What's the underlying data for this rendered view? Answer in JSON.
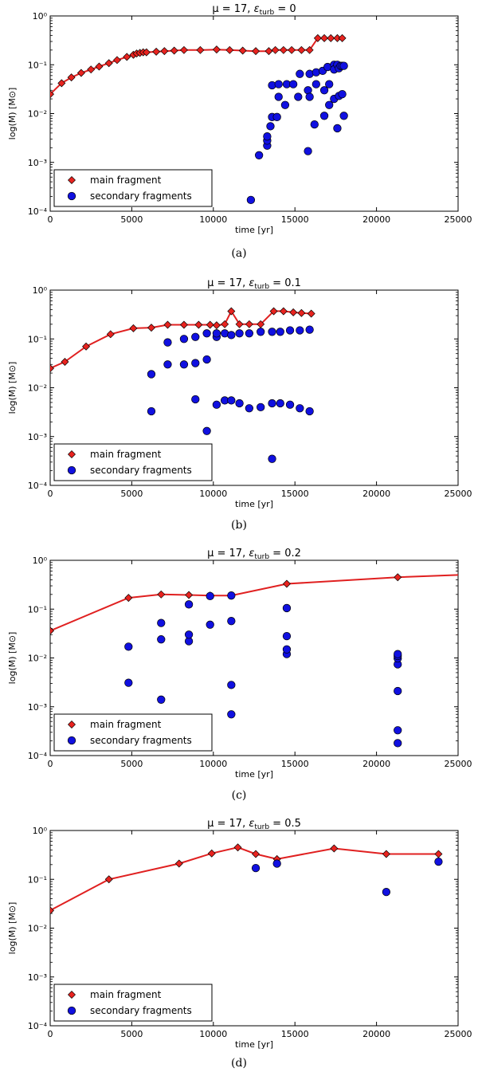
{
  "chart_data": [
    {
      "type": "scatter",
      "panel": "a",
      "title": "μ = 17, ε_turb = 0",
      "title_parts": {
        "prefix": "μ = 17, ",
        "epsilon": "ε",
        "sub": "turb",
        "suffix": " = 0"
      },
      "caption": "(a)",
      "xlabel": "time [yr]",
      "ylabel": "log(M) [M⊙]",
      "xlim": [
        0,
        25000
      ],
      "ylim_log10": [
        -4,
        0
      ],
      "xticks": [
        0,
        5000,
        10000,
        15000,
        20000,
        25000
      ],
      "ytick_labels": [
        "10⁰",
        "10⁻¹",
        "10⁻²",
        "10⁻³",
        "10⁻⁴"
      ],
      "legend": {
        "position": "lower-left",
        "entries": [
          "main fragment",
          "secondary fragments"
        ]
      },
      "series": [
        {
          "name": "main fragment",
          "marker": "diamond",
          "color": "#e8231f",
          "line": true,
          "points": [
            [
              0,
              0.025
            ],
            [
              700,
              0.042
            ],
            [
              1300,
              0.055
            ],
            [
              1900,
              0.068
            ],
            [
              2500,
              0.08
            ],
            [
              3000,
              0.092
            ],
            [
              3600,
              0.108
            ],
            [
              4100,
              0.125
            ],
            [
              4700,
              0.145
            ],
            [
              5100,
              0.16
            ],
            [
              5300,
              0.17
            ],
            [
              5500,
              0.175
            ],
            [
              5700,
              0.18
            ],
            [
              5900,
              0.18
            ],
            [
              6500,
              0.185
            ],
            [
              7000,
              0.19
            ],
            [
              7600,
              0.195
            ],
            [
              8200,
              0.2
            ],
            [
              9200,
              0.2
            ],
            [
              10200,
              0.205
            ],
            [
              11000,
              0.2
            ],
            [
              11800,
              0.195
            ],
            [
              12600,
              0.19
            ],
            [
              13400,
              0.19
            ],
            [
              13800,
              0.2
            ],
            [
              14300,
              0.2
            ],
            [
              14800,
              0.2
            ],
            [
              15400,
              0.2
            ],
            [
              15900,
              0.2
            ],
            [
              16400,
              0.35
            ],
            [
              16800,
              0.35
            ],
            [
              17200,
              0.35
            ],
            [
              17600,
              0.35
            ],
            [
              17900,
              0.35
            ]
          ]
        },
        {
          "name": "secondary fragments",
          "marker": "circle",
          "color": "#1010e0",
          "line": false,
          "points": [
            [
              12300,
              0.00017
            ],
            [
              12800,
              0.0014
            ],
            [
              13300,
              0.0022
            ],
            [
              13300,
              0.0028
            ],
            [
              13300,
              0.0034
            ],
            [
              13500,
              0.0055
            ],
            [
              13600,
              0.0085
            ],
            [
              13600,
              0.038
            ],
            [
              13900,
              0.0085
            ],
            [
              14000,
              0.022
            ],
            [
              14000,
              0.04
            ],
            [
              14400,
              0.015
            ],
            [
              14500,
              0.04
            ],
            [
              14900,
              0.04
            ],
            [
              15200,
              0.022
            ],
            [
              15300,
              0.065
            ],
            [
              15800,
              0.0017
            ],
            [
              15800,
              0.03
            ],
            [
              15900,
              0.065
            ],
            [
              15900,
              0.022
            ],
            [
              16200,
              0.006
            ],
            [
              16300,
              0.07
            ],
            [
              16300,
              0.04
            ],
            [
              16700,
              0.075
            ],
            [
              16800,
              0.009
            ],
            [
              16800,
              0.03
            ],
            [
              17000,
              0.09
            ],
            [
              17100,
              0.015
            ],
            [
              17100,
              0.04
            ],
            [
              17400,
              0.1
            ],
            [
              17400,
              0.08
            ],
            [
              17400,
              0.02
            ],
            [
              17600,
              0.1
            ],
            [
              17600,
              0.005
            ],
            [
              17700,
              0.085
            ],
            [
              17700,
              0.023
            ],
            [
              17800,
              0.095
            ],
            [
              17900,
              0.095
            ],
            [
              17900,
              0.025
            ],
            [
              18000,
              0.009
            ],
            [
              18000,
              0.095
            ]
          ]
        }
      ]
    },
    {
      "type": "scatter",
      "panel": "b",
      "title": "μ = 17, ε_turb = 0.1",
      "title_parts": {
        "prefix": "μ = 17, ",
        "epsilon": "ε",
        "sub": "turb",
        "suffix": " = 0.1"
      },
      "caption": "(b)",
      "xlabel": "time [yr]",
      "ylabel": "log(M) [M⊙]",
      "xlim": [
        0,
        25000
      ],
      "ylim_log10": [
        -4,
        0
      ],
      "xticks": [
        0,
        5000,
        10000,
        15000,
        20000,
        25000
      ],
      "ytick_labels": [
        "10⁰",
        "10⁻¹",
        "10⁻²",
        "10⁻³",
        "10⁻⁴"
      ],
      "legend": {
        "position": "lower-left",
        "entries": [
          "main fragment",
          "secondary fragments"
        ]
      },
      "series": [
        {
          "name": "main fragment",
          "marker": "diamond",
          "color": "#e8231f",
          "line": true,
          "points": [
            [
              0,
              0.025
            ],
            [
              900,
              0.034
            ],
            [
              2200,
              0.07
            ],
            [
              3700,
              0.125
            ],
            [
              5100,
              0.165
            ],
            [
              6200,
              0.17
            ],
            [
              7200,
              0.195
            ],
            [
              8200,
              0.195
            ],
            [
              9100,
              0.195
            ],
            [
              9800,
              0.195
            ],
            [
              10200,
              0.19
            ],
            [
              10700,
              0.2
            ],
            [
              11100,
              0.37
            ],
            [
              11600,
              0.2
            ],
            [
              12200,
              0.2
            ],
            [
              12900,
              0.2
            ],
            [
              13700,
              0.37
            ],
            [
              14300,
              0.37
            ],
            [
              14900,
              0.35
            ],
            [
              15400,
              0.34
            ],
            [
              16000,
              0.33
            ]
          ]
        },
        {
          "name": "secondary fragments",
          "marker": "circle",
          "color": "#1010e0",
          "line": false,
          "points": [
            [
              6200,
              0.0033
            ],
            [
              6200,
              0.019
            ],
            [
              7200,
              0.03
            ],
            [
              7200,
              0.085
            ],
            [
              8200,
              0.03
            ],
            [
              8200,
              0.1
            ],
            [
              8900,
              0.0058
            ],
            [
              8900,
              0.032
            ],
            [
              8900,
              0.11
            ],
            [
              9600,
              0.0013
            ],
            [
              9600,
              0.038
            ],
            [
              9600,
              0.13
            ],
            [
              10200,
              0.0045
            ],
            [
              10200,
              0.11
            ],
            [
              10200,
              0.13
            ],
            [
              10700,
              0.0055
            ],
            [
              10700,
              0.13
            ],
            [
              11100,
              0.0055
            ],
            [
              11100,
              0.12
            ],
            [
              11600,
              0.0048
            ],
            [
              11600,
              0.13
            ],
            [
              12200,
              0.0038
            ],
            [
              12200,
              0.13
            ],
            [
              12900,
              0.004
            ],
            [
              12900,
              0.14
            ],
            [
              13600,
              0.00035
            ],
            [
              13600,
              0.0048
            ],
            [
              13600,
              0.14
            ],
            [
              14100,
              0.0048
            ],
            [
              14100,
              0.14
            ],
            [
              14700,
              0.0045
            ],
            [
              14700,
              0.15
            ],
            [
              15300,
              0.0038
            ],
            [
              15300,
              0.15
            ],
            [
              15900,
              0.0033
            ],
            [
              15900,
              0.155
            ]
          ]
        }
      ]
    },
    {
      "type": "scatter",
      "panel": "c",
      "title": "μ = 17, ε_turb = 0.2",
      "title_parts": {
        "prefix": "μ = 17, ",
        "epsilon": "ε",
        "sub": "turb",
        "suffix": " = 0.2"
      },
      "caption": "(c)",
      "xlabel": "time [yr]",
      "ylabel": "log(M) [M⊙]",
      "xlim": [
        0,
        25000
      ],
      "ylim_log10": [
        -4,
        0
      ],
      "xticks": [
        0,
        5000,
        10000,
        15000,
        20000,
        25000
      ],
      "ytick_labels": [
        "10⁰",
        "10⁻¹",
        "10⁻²",
        "10⁻³",
        "10⁻⁴"
      ],
      "legend": {
        "position": "lower-left",
        "entries": [
          "main fragment",
          "secondary fragments"
        ]
      },
      "series": [
        {
          "name": "main fragment",
          "marker": "diamond",
          "color": "#e8231f",
          "line": true,
          "points": [
            [
              0,
              0.036
            ],
            [
              4800,
              0.17
            ],
            [
              6800,
              0.2
            ],
            [
              8500,
              0.195
            ],
            [
              9800,
              0.19
            ],
            [
              11100,
              0.19
            ],
            [
              14500,
              0.33
            ],
            [
              21300,
              0.45
            ],
            [
              25000,
              0.5
            ]
          ],
          "hidden_marker_last": true
        },
        {
          "name": "secondary fragments",
          "marker": "circle",
          "color": "#1010e0",
          "line": false,
          "points": [
            [
              4800,
              0.0031
            ],
            [
              4800,
              0.017
            ],
            [
              6800,
              0.0014
            ],
            [
              6800,
              0.024
            ],
            [
              6800,
              0.052
            ],
            [
              8500,
              0.022
            ],
            [
              8500,
              0.03
            ],
            [
              8500,
              0.125
            ],
            [
              9800,
              0.048
            ],
            [
              9800,
              0.185
            ],
            [
              11100,
              0.0007
            ],
            [
              11100,
              0.0028
            ],
            [
              11100,
              0.057
            ],
            [
              11100,
              0.19
            ],
            [
              14500,
              0.012
            ],
            [
              14500,
              0.015
            ],
            [
              14500,
              0.028
            ],
            [
              14500,
              0.105
            ],
            [
              21300,
              0.00018
            ],
            [
              21300,
              0.00033
            ],
            [
              21300,
              0.0021
            ],
            [
              21300,
              0.0074
            ],
            [
              21300,
              0.0098
            ],
            [
              21300,
              0.011
            ],
            [
              21300,
              0.012
            ]
          ]
        }
      ]
    },
    {
      "type": "scatter",
      "panel": "d",
      "title": "μ = 17, ε_turb = 0.5",
      "title_parts": {
        "prefix": "μ = 17, ",
        "epsilon": "ε",
        "sub": "turb",
        "suffix": " = 0.5"
      },
      "caption": "(d)",
      "xlabel": "time [yr]",
      "ylabel": "log(M) [M⊙]",
      "xlim": [
        0,
        25000
      ],
      "ylim_log10": [
        -4,
        0
      ],
      "xticks": [
        0,
        5000,
        10000,
        15000,
        20000,
        25000
      ],
      "ytick_labels": [
        "10⁰",
        "10⁻¹",
        "10⁻²",
        "10⁻³",
        "10⁻⁴"
      ],
      "legend": {
        "position": "lower-left",
        "entries": [
          "main fragment",
          "secondary fragments"
        ]
      },
      "series": [
        {
          "name": "main fragment",
          "marker": "diamond",
          "color": "#e8231f",
          "line": true,
          "points": [
            [
              0,
              0.023
            ],
            [
              3600,
              0.1
            ],
            [
              7900,
              0.21
            ],
            [
              9900,
              0.34
            ],
            [
              11500,
              0.45
            ],
            [
              12600,
              0.33
            ],
            [
              13900,
              0.26
            ],
            [
              17400,
              0.43
            ],
            [
              20600,
              0.33
            ],
            [
              23800,
              0.33
            ]
          ]
        },
        {
          "name": "secondary fragments",
          "marker": "circle",
          "color": "#1010e0",
          "line": false,
          "points": [
            [
              12600,
              0.17
            ],
            [
              13900,
              0.21
            ],
            [
              20600,
              0.055
            ],
            [
              23800,
              0.23
            ]
          ]
        }
      ]
    }
  ]
}
